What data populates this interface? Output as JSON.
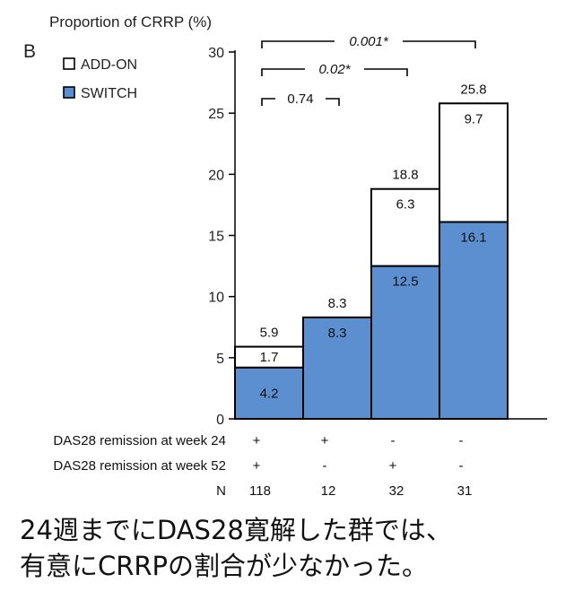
{
  "chart_data": {
    "type": "bar",
    "panel_label": "B",
    "y_axis_title": "Proportion of CRRP (%)",
    "ylim": [
      0,
      30
    ],
    "yticks": [
      0,
      5,
      10,
      15,
      20,
      25,
      30
    ],
    "categories": [
      "118",
      "12",
      "32",
      "31"
    ],
    "series": [
      {
        "name": "SWITCH",
        "values": [
          4.2,
          8.3,
          12.5,
          16.1
        ],
        "labels": [
          "4.2",
          "8.3",
          "12.5",
          "16.1"
        ],
        "color": "#5b8fcf"
      },
      {
        "name": "ADD-ON",
        "values": [
          1.7,
          0,
          6.3,
          9.7
        ],
        "labels": [
          "1.7",
          "",
          "6.3",
          "9.7"
        ],
        "color": "#ffffff"
      }
    ],
    "totals": [
      5.9,
      8.3,
      18.8,
      25.8
    ],
    "total_labels": [
      "5.9",
      "8.3",
      "18.8",
      "25.8"
    ],
    "table_rows": [
      {
        "label": "DAS28 remission at week 24",
        "values": [
          "+",
          "+",
          "-",
          "-"
        ]
      },
      {
        "label": "DAS28 remission at week 52",
        "values": [
          "+",
          "-",
          "+",
          "-"
        ]
      },
      {
        "label": "N",
        "values": [
          "118",
          "12",
          "32",
          "31"
        ]
      }
    ],
    "comparisons": [
      {
        "from": 0,
        "to": 3,
        "label": "0.001",
        "marker": "*",
        "italic": true
      },
      {
        "from": 0,
        "to": 2,
        "label": "0.02",
        "marker": "*",
        "italic": true
      },
      {
        "from": 0,
        "to": 1,
        "label": "0.74",
        "marker": "",
        "italic": false
      }
    ],
    "bar_border_color": "#000000"
  },
  "caption": {
    "line1": "24週までにDAS28寛解した群では、",
    "line2": "有意にCRRPの割合が少なかった。"
  }
}
